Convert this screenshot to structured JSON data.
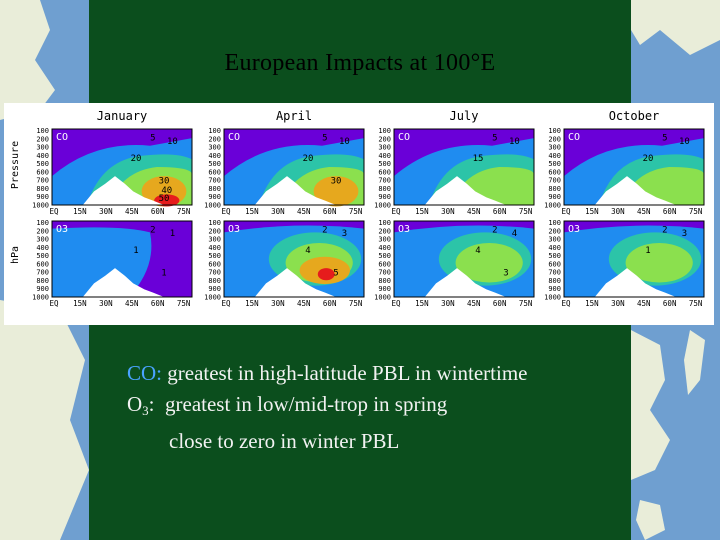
{
  "slide": {
    "title": "European Impacts at 100°E"
  },
  "figure": {
    "columns": [
      "January",
      "April",
      "July",
      "October"
    ],
    "species": [
      "CO",
      "O3"
    ],
    "ylabel": "Pressure / hPa",
    "pressure_ticks": [
      "100",
      "200",
      "300",
      "400",
      "500",
      "600",
      "700",
      "800",
      "900",
      "1000"
    ],
    "lat_ticks": [
      "EQ",
      "15N",
      "30N",
      "45N",
      "60N",
      "75N"
    ],
    "contour_labels": {
      "co_january": [
        "5",
        "10",
        "20",
        "30",
        "40",
        "50"
      ],
      "co_april": [
        "5",
        "10",
        "20",
        "30"
      ],
      "co_july": [
        "5",
        "10",
        "15"
      ],
      "co_october": [
        "5",
        "10",
        "20"
      ],
      "o3_january": [
        "2",
        "1",
        "1",
        "1"
      ],
      "o3_april": [
        "2",
        "3",
        "4",
        "5"
      ],
      "o3_july": [
        "2",
        "4",
        "4",
        "3"
      ],
      "o3_october": [
        "2",
        "3",
        "1"
      ]
    },
    "colors": {
      "purple": "#6a00d8",
      "blue": "#1f8cf0",
      "teal": "#2cc4a8",
      "green": "#8be04e",
      "orange": "#e6a81e",
      "red": "#e61c1c",
      "terrain": "#ffffff"
    }
  },
  "caption": {
    "line1_label": "CO:",
    "line1_text": " greatest in high-latitude PBL in wintertime",
    "line2_label": "O",
    "line2_sub": "3",
    "line2_text": ":  greatest in low/mid-trop in spring",
    "line3_text": "close to zero in winter PBL"
  },
  "background": {
    "ocean": "#6f9fd0",
    "land": "#e9edd9",
    "panel": "#0b4e1d"
  }
}
